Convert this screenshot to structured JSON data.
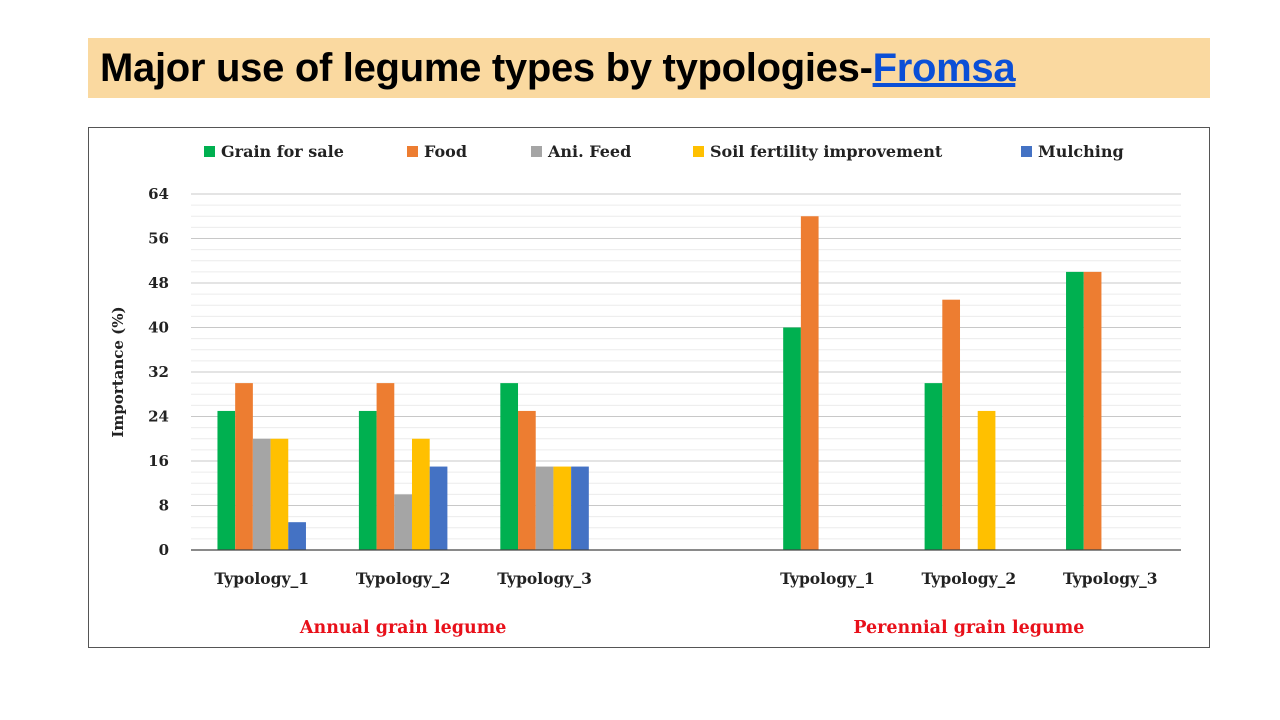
{
  "slide": {
    "title_prefix": "Major use of legume types by typologies-",
    "title_link": "Fromsa"
  },
  "chart_data": {
    "type": "bar",
    "ylabel": "Importance (%)",
    "ylim": [
      0,
      64
    ],
    "yticks": [
      0,
      8,
      16,
      24,
      32,
      40,
      48,
      56,
      64
    ],
    "grid": true,
    "legend_position": "top",
    "groups": [
      {
        "label": "Annual grain legume",
        "categories": [
          "Typology_1",
          "Typology_2",
          "Typology_3"
        ]
      },
      {
        "label": "Perennial grain legume",
        "categories": [
          "Typology_1",
          "Typology_2",
          "Typology_3"
        ]
      }
    ],
    "series": [
      {
        "name": "Grain for sale",
        "color": "#00b050",
        "values": [
          25,
          25,
          30,
          40,
          30,
          50
        ]
      },
      {
        "name": "Food",
        "color": "#ed7d31",
        "values": [
          30,
          30,
          25,
          60,
          45,
          50
        ]
      },
      {
        "name": "Ani. Feed",
        "color": "#a5a5a5",
        "values": [
          20,
          10,
          15,
          0,
          0,
          0
        ]
      },
      {
        "name": "Soil fertility improvement",
        "color": "#ffc000",
        "values": [
          20,
          20,
          15,
          0,
          25,
          0
        ]
      },
      {
        "name": "Mulching",
        "color": "#4472c4",
        "values": [
          5,
          15,
          15,
          0,
          0,
          0
        ]
      }
    ],
    "group_label_color": "#e8101a"
  }
}
